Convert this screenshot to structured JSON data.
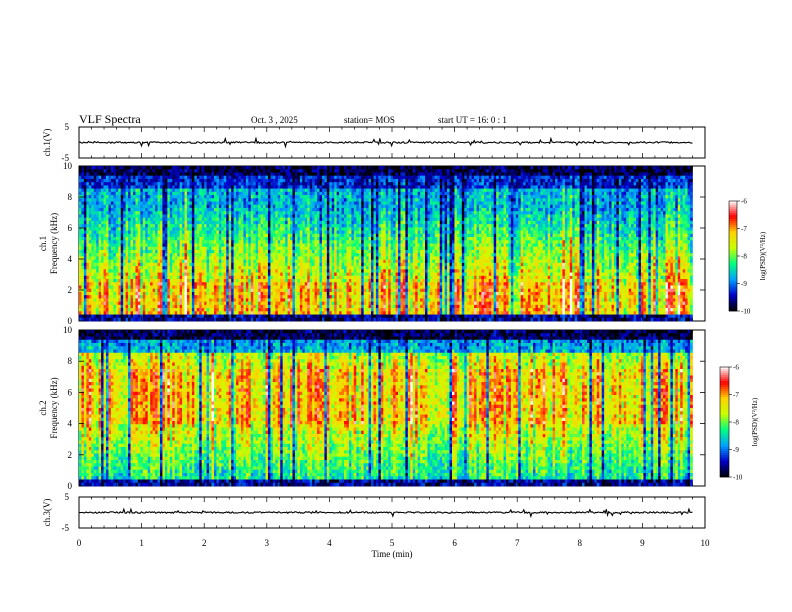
{
  "header": {
    "title": "VLF Spectra",
    "date": "Oct. 3 , 2025",
    "station": "station= MOS",
    "start_ut": "start  UT =  16: 0 : 1"
  },
  "chart_data": {
    "type": "heatmap",
    "title": "VLF Spectra",
    "xlabel": "Time (min)",
    "x_ticks": [
      "0",
      "1",
      "2",
      "3",
      "4",
      "5",
      "6",
      "7",
      "8",
      "9",
      "10"
    ],
    "xlim": [
      0,
      10
    ],
    "data_extent_min": 9.8,
    "panels": [
      {
        "id": "ch1-waveform",
        "kind": "waveform",
        "ylabel": "ch.1(V)",
        "ylim": [
          -5,
          5
        ],
        "y_ticks": [
          "5",
          "-5"
        ],
        "baseline": 0
      },
      {
        "id": "ch1-spectrogram",
        "kind": "spectrogram",
        "ylabel": "ch.1\nFrequency (kHz)",
        "ylabel_lines": [
          "ch.1",
          "Frequency (kHz)"
        ],
        "ylim": [
          0,
          10
        ],
        "y_ticks": [
          "0",
          "2",
          "4",
          "6",
          "8",
          "10"
        ],
        "peak_band_khz": [
          0.5,
          2.5
        ],
        "colorbar": {
          "label": "log(PSD)(V²/Hz)",
          "ticks": [
            "-6",
            "-7",
            "-8",
            "-9",
            "-10"
          ],
          "range": [
            -10,
            -6
          ]
        }
      },
      {
        "id": "ch2-spectrogram",
        "kind": "spectrogram",
        "ylabel": "ch.2\nFrequency (kHz)",
        "ylabel_lines": [
          "ch.2",
          "Frequency (kHz)"
        ],
        "ylim": [
          0,
          10
        ],
        "y_ticks": [
          "0",
          "2",
          "4",
          "6",
          "8",
          "10"
        ],
        "peak_band_khz": [
          4.0,
          7.5
        ],
        "colorbar": {
          "label": "log(PSD)(V²/Hz)",
          "ticks": [
            "-6",
            "-7",
            "-8",
            "-9",
            "-10"
          ],
          "range": [
            -10,
            -6
          ]
        }
      },
      {
        "id": "ch3-waveform",
        "kind": "waveform",
        "ylabel": "ch.3(V)",
        "ylim": [
          -5,
          5
        ],
        "y_ticks": [
          "5",
          "-5"
        ],
        "baseline": 0
      }
    ],
    "colormap": [
      "#000000",
      "#0000c8",
      "#00a0ff",
      "#00ff80",
      "#c8ff00",
      "#ffd200",
      "#ff0000",
      "#ffffff"
    ]
  }
}
